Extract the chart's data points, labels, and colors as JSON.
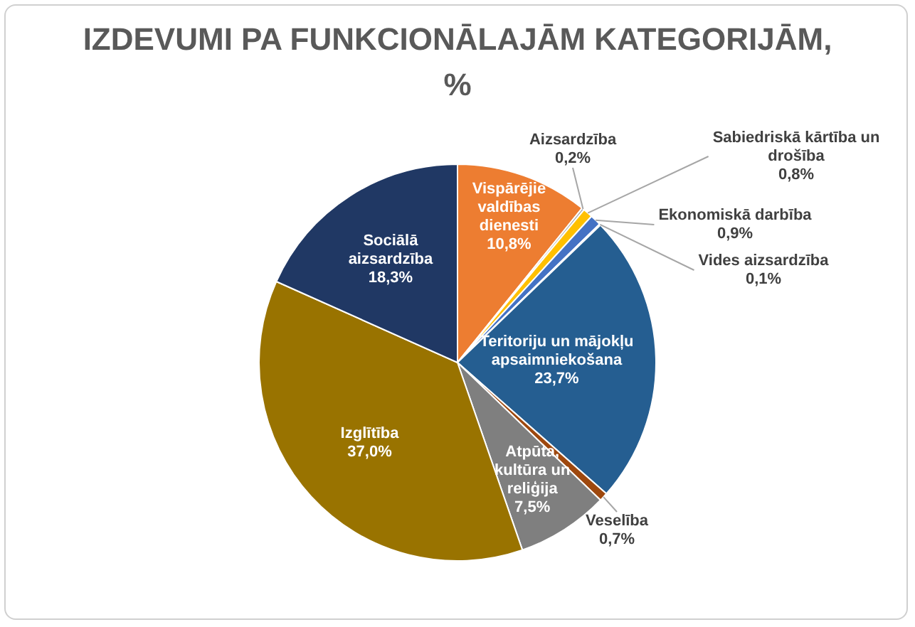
{
  "chart_data": {
    "type": "pie",
    "title": "IZDEVUMI PA FUNKCIONĀLAJĀM KATEGORIJĀM, %",
    "categories": [
      "Vispārējie valdības dienesti",
      "Aizsardzība",
      "Sabiedriskā kārtība un drošība",
      "Ekonomiskā darbība",
      "Vides aizsardzība",
      "Teritoriju un mājokļu apsaimniekošana",
      "Veselība",
      "Atpūta, kultūra un reliģija",
      "Izglītība",
      "Sociālā aizsardzība"
    ],
    "values": [
      10.8,
      0.2,
      0.8,
      0.9,
      0.1,
      23.7,
      0.7,
      7.5,
      37.0,
      18.3
    ],
    "value_labels": [
      "10,8%",
      "0,2%",
      "0,8%",
      "0,9%",
      "0,1%",
      "23,7%",
      "0,7%",
      "7,5%",
      "37,0%",
      "18,3%"
    ],
    "colors": [
      "#ed7d31",
      "#a5a5a5",
      "#ffc000",
      "#4472c4",
      "#70ad47",
      "#255e91",
      "#9e480e",
      "#7f7f7f",
      "#997300",
      "#203864"
    ],
    "legend": false
  }
}
